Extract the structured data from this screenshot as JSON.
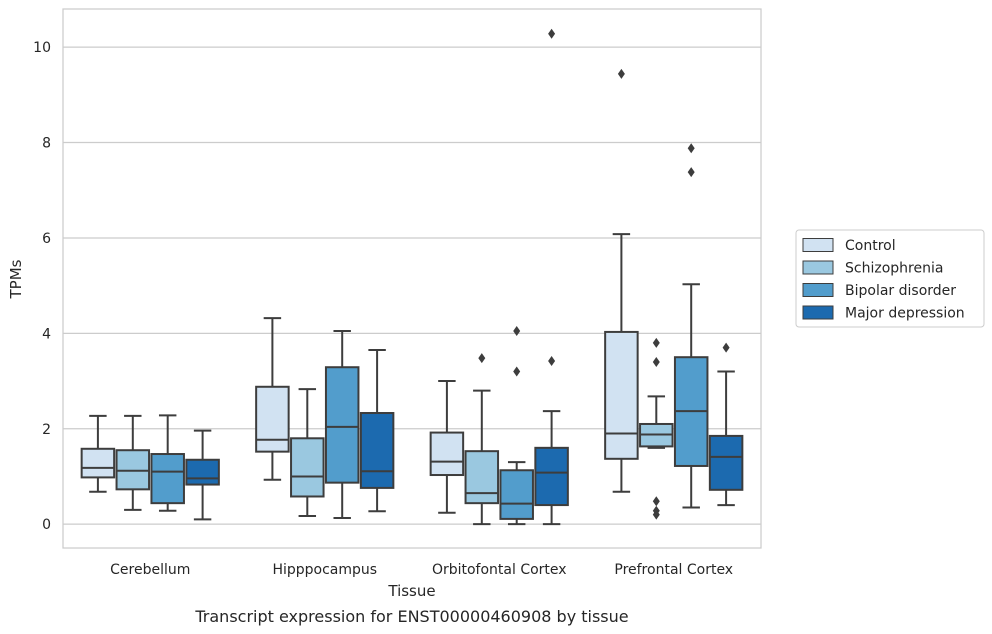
{
  "chart_data": {
    "type": "box",
    "xlabel": "Tissue",
    "ylabel": "TPMs",
    "caption": "Transcript expression for ENST00000460908 by tissue",
    "categories": [
      "Cerebellum",
      "Hipppocampus",
      "Orbitofontal Cortex",
      "Prefrontal Cortex"
    ],
    "ylim": [
      -0.5,
      10.8
    ],
    "yticks": [
      0,
      2,
      4,
      6,
      8,
      10
    ],
    "grid": "horizontal",
    "legend_position": "right, outside plot",
    "series": [
      {
        "name": "Control",
        "color": "#d1e2f2",
        "boxes": [
          {
            "whislo": 0.68,
            "q1": 0.98,
            "med": 1.18,
            "q3": 1.58,
            "whishi": 2.27,
            "fliers": []
          },
          {
            "whislo": 0.93,
            "q1": 1.52,
            "med": 1.77,
            "q3": 2.88,
            "whishi": 4.32,
            "fliers": []
          },
          {
            "whislo": 0.24,
            "q1": 1.03,
            "med": 1.31,
            "q3": 1.92,
            "whishi": 3.0,
            "fliers": []
          },
          {
            "whislo": 0.68,
            "q1": 1.37,
            "med": 1.9,
            "q3": 4.03,
            "whishi": 6.08,
            "fliers": [
              9.44
            ]
          }
        ]
      },
      {
        "name": "Schizophrenia",
        "color": "#9ac8e0",
        "boxes": [
          {
            "whislo": 0.3,
            "q1": 0.73,
            "med": 1.12,
            "q3": 1.55,
            "whishi": 2.27,
            "fliers": []
          },
          {
            "whislo": 0.17,
            "q1": 0.58,
            "med": 1.0,
            "q3": 1.8,
            "whishi": 2.83,
            "fliers": []
          },
          {
            "whislo": 0.0,
            "q1": 0.44,
            "med": 0.65,
            "q3": 1.53,
            "whishi": 2.8,
            "fliers": [
              3.48
            ]
          },
          {
            "whislo": 1.6,
            "q1": 1.63,
            "med": 1.88,
            "q3": 2.1,
            "whishi": 2.68,
            "fliers": [
              3.8,
              3.4,
              0.48,
              0.28,
              0.2
            ]
          }
        ]
      },
      {
        "name": "Bipolar disorder",
        "color": "#529dcc",
        "boxes": [
          {
            "whislo": 0.28,
            "q1": 0.44,
            "med": 1.1,
            "q3": 1.47,
            "whishi": 2.28,
            "fliers": []
          },
          {
            "whislo": 0.13,
            "q1": 0.87,
            "med": 2.04,
            "q3": 3.29,
            "whishi": 4.05,
            "fliers": []
          },
          {
            "whislo": 0.0,
            "q1": 0.11,
            "med": 0.43,
            "q3": 1.13,
            "whishi": 1.3,
            "fliers": [
              4.05,
              3.2
            ]
          },
          {
            "whislo": 0.35,
            "q1": 1.22,
            "med": 2.37,
            "q3": 3.5,
            "whishi": 5.03,
            "fliers": [
              7.88,
              7.38
            ]
          }
        ]
      },
      {
        "name": "Major depression",
        "color": "#1c6aaf",
        "boxes": [
          {
            "whislo": 0.1,
            "q1": 0.83,
            "med": 0.96,
            "q3": 1.35,
            "whishi": 1.96,
            "fliers": []
          },
          {
            "whislo": 0.27,
            "q1": 0.76,
            "med": 1.11,
            "q3": 2.33,
            "whishi": 3.65,
            "fliers": []
          },
          {
            "whislo": 0.0,
            "q1": 0.4,
            "med": 1.08,
            "q3": 1.6,
            "whishi": 2.37,
            "fliers": [
              10.28,
              3.42
            ]
          },
          {
            "whislo": 0.4,
            "q1": 0.72,
            "med": 1.41,
            "q3": 1.85,
            "whishi": 3.2,
            "fliers": [
              3.7
            ]
          }
        ]
      }
    ]
  }
}
